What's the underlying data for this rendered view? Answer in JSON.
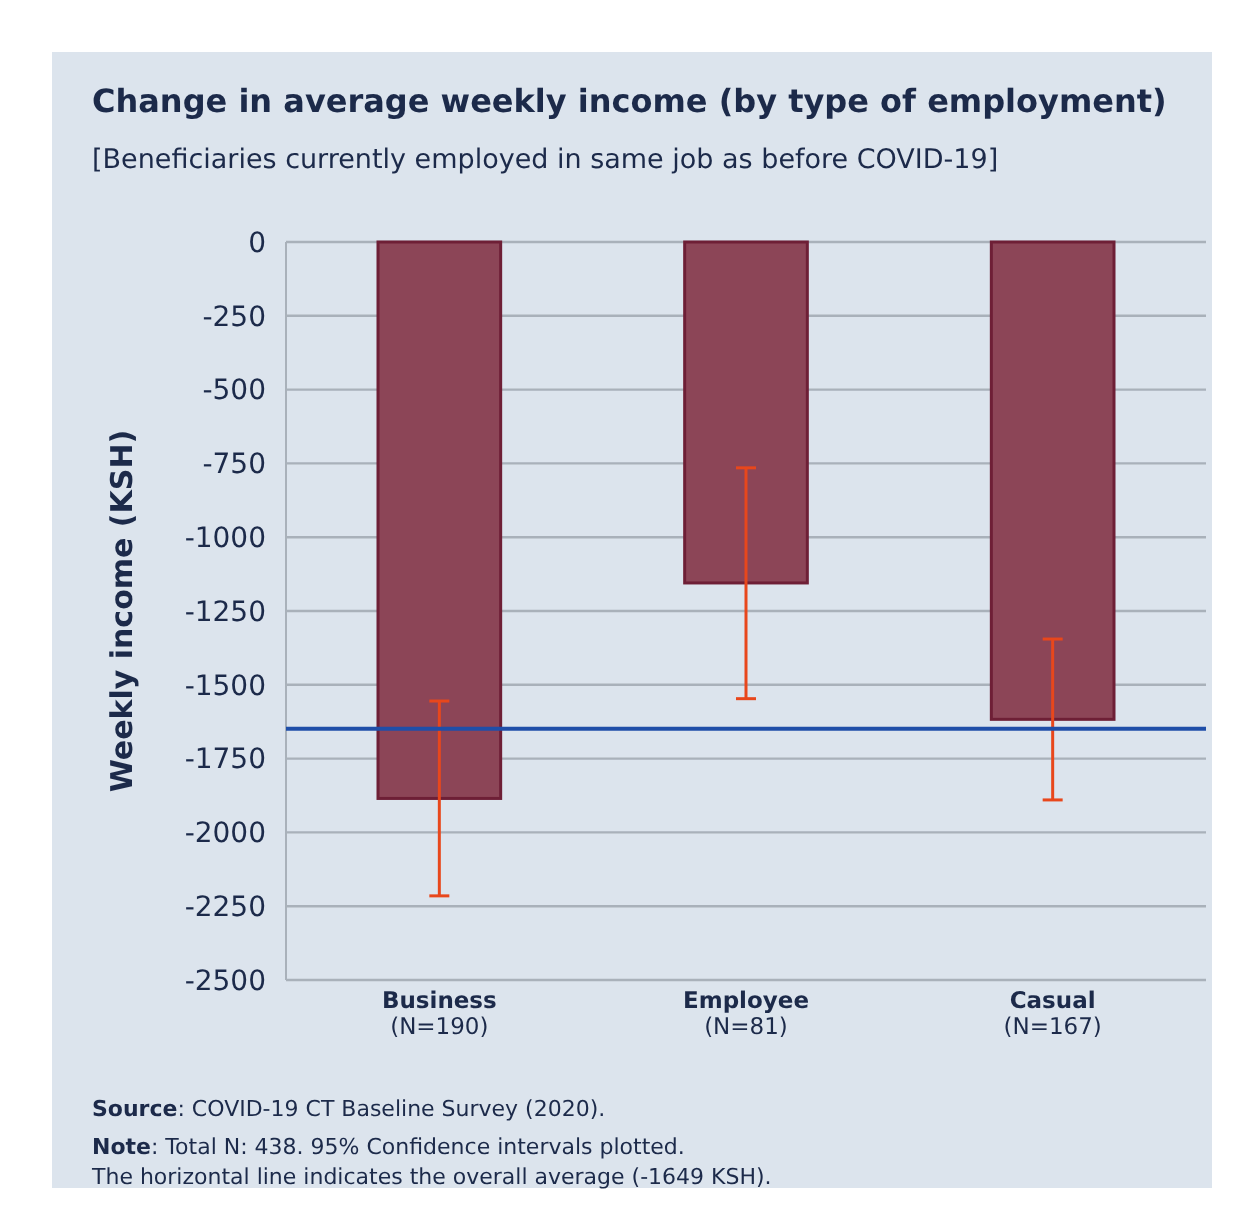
{
  "chart_data": {
    "type": "bar",
    "title": "Change in average weekly income (by type of employment)",
    "subtitle": "[Beneficiaries currently employed in same job as before COVID-19]",
    "ylabel": "Weekly income (KSH)",
    "categories": [
      "Business\n(N=190)",
      "Employee\n(N=81)",
      "Casual\n(N=167)"
    ],
    "values": [
      -1885,
      -1155,
      -1617
    ],
    "color": "#8c4557",
    "errors": [
      [
        -2215,
        -1555
      ],
      [
        -1547,
        -765
      ],
      [
        -1890,
        -1345
      ]
    ],
    "ylim": [
      -2500,
      0
    ],
    "yticks": [
      0,
      -250,
      -500,
      -750,
      -1000,
      -1250,
      -1500,
      -1750,
      -2000,
      -2250,
      -2500
    ],
    "grid": "y",
    "ref_lines": [
      {
        "axis": "y",
        "value": -1649,
        "color": "#1f4ea8"
      }
    ],
    "annotations": [
      "Source: COVID-19 CT Baseline Survey (2020).",
      "Note: Total N: 438. 95% Confidence intervals plotted.",
      "The horizontal line indicates the overall average (-1649 KSH)."
    ]
  }
}
